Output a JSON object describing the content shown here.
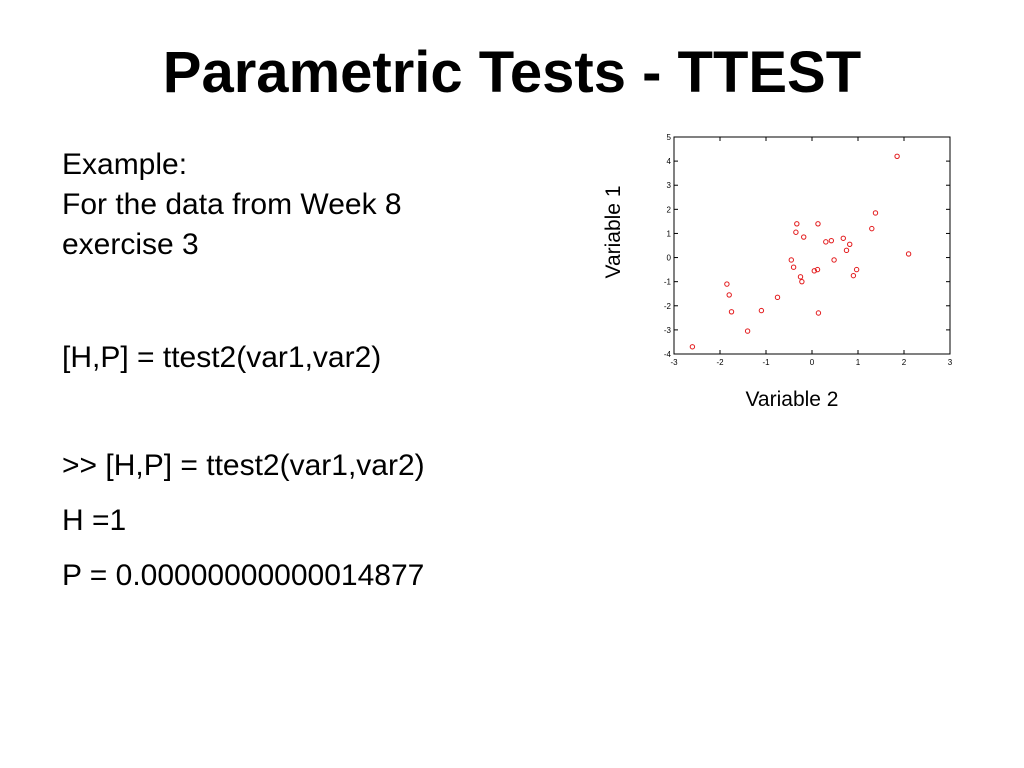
{
  "slide": {
    "title": "Parametric Tests - TTEST",
    "intro_lines": [
      "Example:",
      "For the data from Week 8",
      "exercise 3"
    ],
    "code_line": "[H,P] = ttest2(var1,var2)",
    "output": {
      "prompt_line": ">> [H,P] = ttest2(var1,var2)",
      "h_line": "H =1",
      "p_line": "P =  0.00000000000014877"
    }
  },
  "chart_data": {
    "type": "scatter",
    "xlabel": "Variable 2",
    "ylabel": "Variable 1",
    "xlim": [
      -3,
      3
    ],
    "ylim": [
      -4,
      5
    ],
    "xticks": [
      -3,
      -2,
      -1,
      0,
      1,
      2,
      3
    ],
    "yticks": [
      -4,
      -3,
      -2,
      -1,
      0,
      1,
      2,
      3,
      4,
      5
    ],
    "grid": false,
    "marker_color": "#e31a1c",
    "points": [
      {
        "x": -2.6,
        "y": -3.7
      },
      {
        "x": -1.85,
        "y": -1.1
      },
      {
        "x": -1.8,
        "y": -1.55
      },
      {
        "x": -1.75,
        "y": -2.25
      },
      {
        "x": -1.4,
        "y": -3.05
      },
      {
        "x": -1.1,
        "y": -2.2
      },
      {
        "x": -0.75,
        "y": -1.65
      },
      {
        "x": -0.45,
        "y": -0.1
      },
      {
        "x": -0.4,
        "y": -0.4
      },
      {
        "x": -0.35,
        "y": 1.05
      },
      {
        "x": -0.33,
        "y": 1.4
      },
      {
        "x": -0.25,
        "y": -0.8
      },
      {
        "x": -0.22,
        "y": -1.0
      },
      {
        "x": -0.18,
        "y": 0.85
      },
      {
        "x": 0.05,
        "y": -0.55
      },
      {
        "x": 0.12,
        "y": -0.5
      },
      {
        "x": 0.13,
        "y": 1.4
      },
      {
        "x": 0.14,
        "y": -2.3
      },
      {
        "x": 0.3,
        "y": 0.65
      },
      {
        "x": 0.42,
        "y": 0.7
      },
      {
        "x": 0.48,
        "y": -0.1
      },
      {
        "x": 0.68,
        "y": 0.8
      },
      {
        "x": 0.75,
        "y": 0.3
      },
      {
        "x": 0.82,
        "y": 0.55
      },
      {
        "x": 0.9,
        "y": -0.75
      },
      {
        "x": 0.97,
        "y": -0.5
      },
      {
        "x": 1.3,
        "y": 1.2
      },
      {
        "x": 1.38,
        "y": 1.85
      },
      {
        "x": 1.85,
        "y": 4.2
      },
      {
        "x": 2.1,
        "y": 0.15
      }
    ]
  }
}
